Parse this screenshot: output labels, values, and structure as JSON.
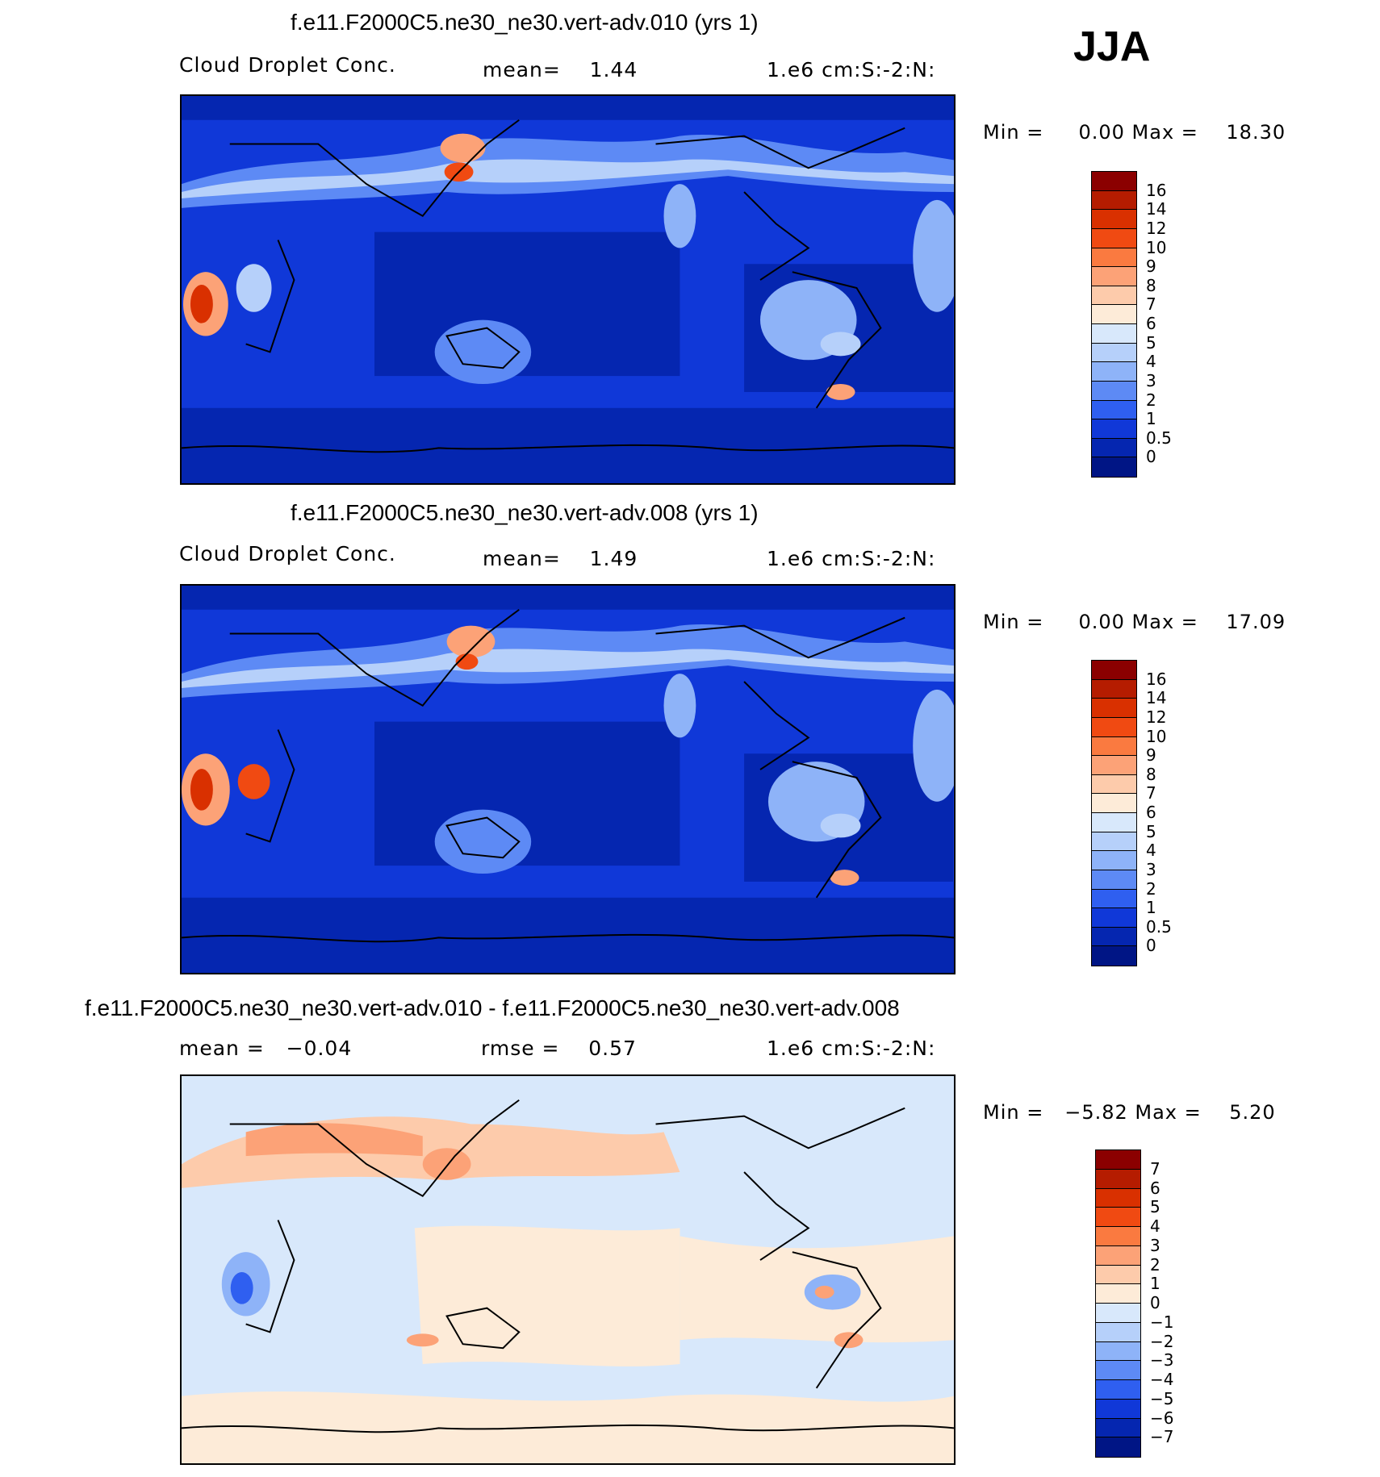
{
  "season": "JJA",
  "panels": [
    {
      "title": "f.e11.F2000C5.ne30_ne30.vert-adv.010 (yrs 1)",
      "field": "Cloud Droplet Conc.",
      "stat1": "mean=    1.44",
      "units": "1.e6 cm:S:-2:N:",
      "minmax": "Min =     0.00 Max =    18.30"
    },
    {
      "title": "f.e11.F2000C5.ne30_ne30.vert-adv.008 (yrs 1)",
      "field": "Cloud Droplet Conc.",
      "stat1": "mean=    1.49",
      "units": "1.e6 cm:S:-2:N:",
      "minmax": "Min =     0.00 Max =    17.09"
    },
    {
      "title": "f.e11.F2000C5.ne30_ne30.vert-adv.010 - f.e11.F2000C5.ne30_ne30.vert-adv.008",
      "stat1": "mean =   −0.04",
      "stat2": "rmse =    0.57",
      "units": "1.e6 cm:S:-2:N:",
      "minmax": "Min =   −5.82 Max =    5.20"
    }
  ],
  "colorbars": {
    "abs_labels": [
      "16",
      "14",
      "12",
      "10",
      "9",
      "8",
      "7",
      "6",
      "5",
      "4",
      "3",
      "2",
      "1",
      "0.5",
      "0"
    ],
    "abs_colors": [
      "#8b0000",
      "#b51c00",
      "#d93000",
      "#f04a12",
      "#fa7a40",
      "#fca277",
      "#fdcbab",
      "#fdebd8",
      "#d8e8fb",
      "#b6d0fa",
      "#8eb3f8",
      "#5d8af5",
      "#2f5ff0",
      "#1038d8",
      "#0526b0",
      "#001585"
    ],
    "diff_labels": [
      "7",
      "6",
      "5",
      "4",
      "3",
      "2",
      "1",
      "0",
      "−1",
      "−2",
      "−3",
      "−4",
      "−5",
      "−6",
      "−7"
    ],
    "diff_colors": [
      "#8b0000",
      "#b51c00",
      "#d93000",
      "#f04a12",
      "#fa7a40",
      "#fca277",
      "#fdcbab",
      "#fdebd8",
      "#d8e8fb",
      "#b6d0fa",
      "#8eb3f8",
      "#5d8af5",
      "#2f5ff0",
      "#1038d8",
      "#0526b0",
      "#001585"
    ]
  }
}
